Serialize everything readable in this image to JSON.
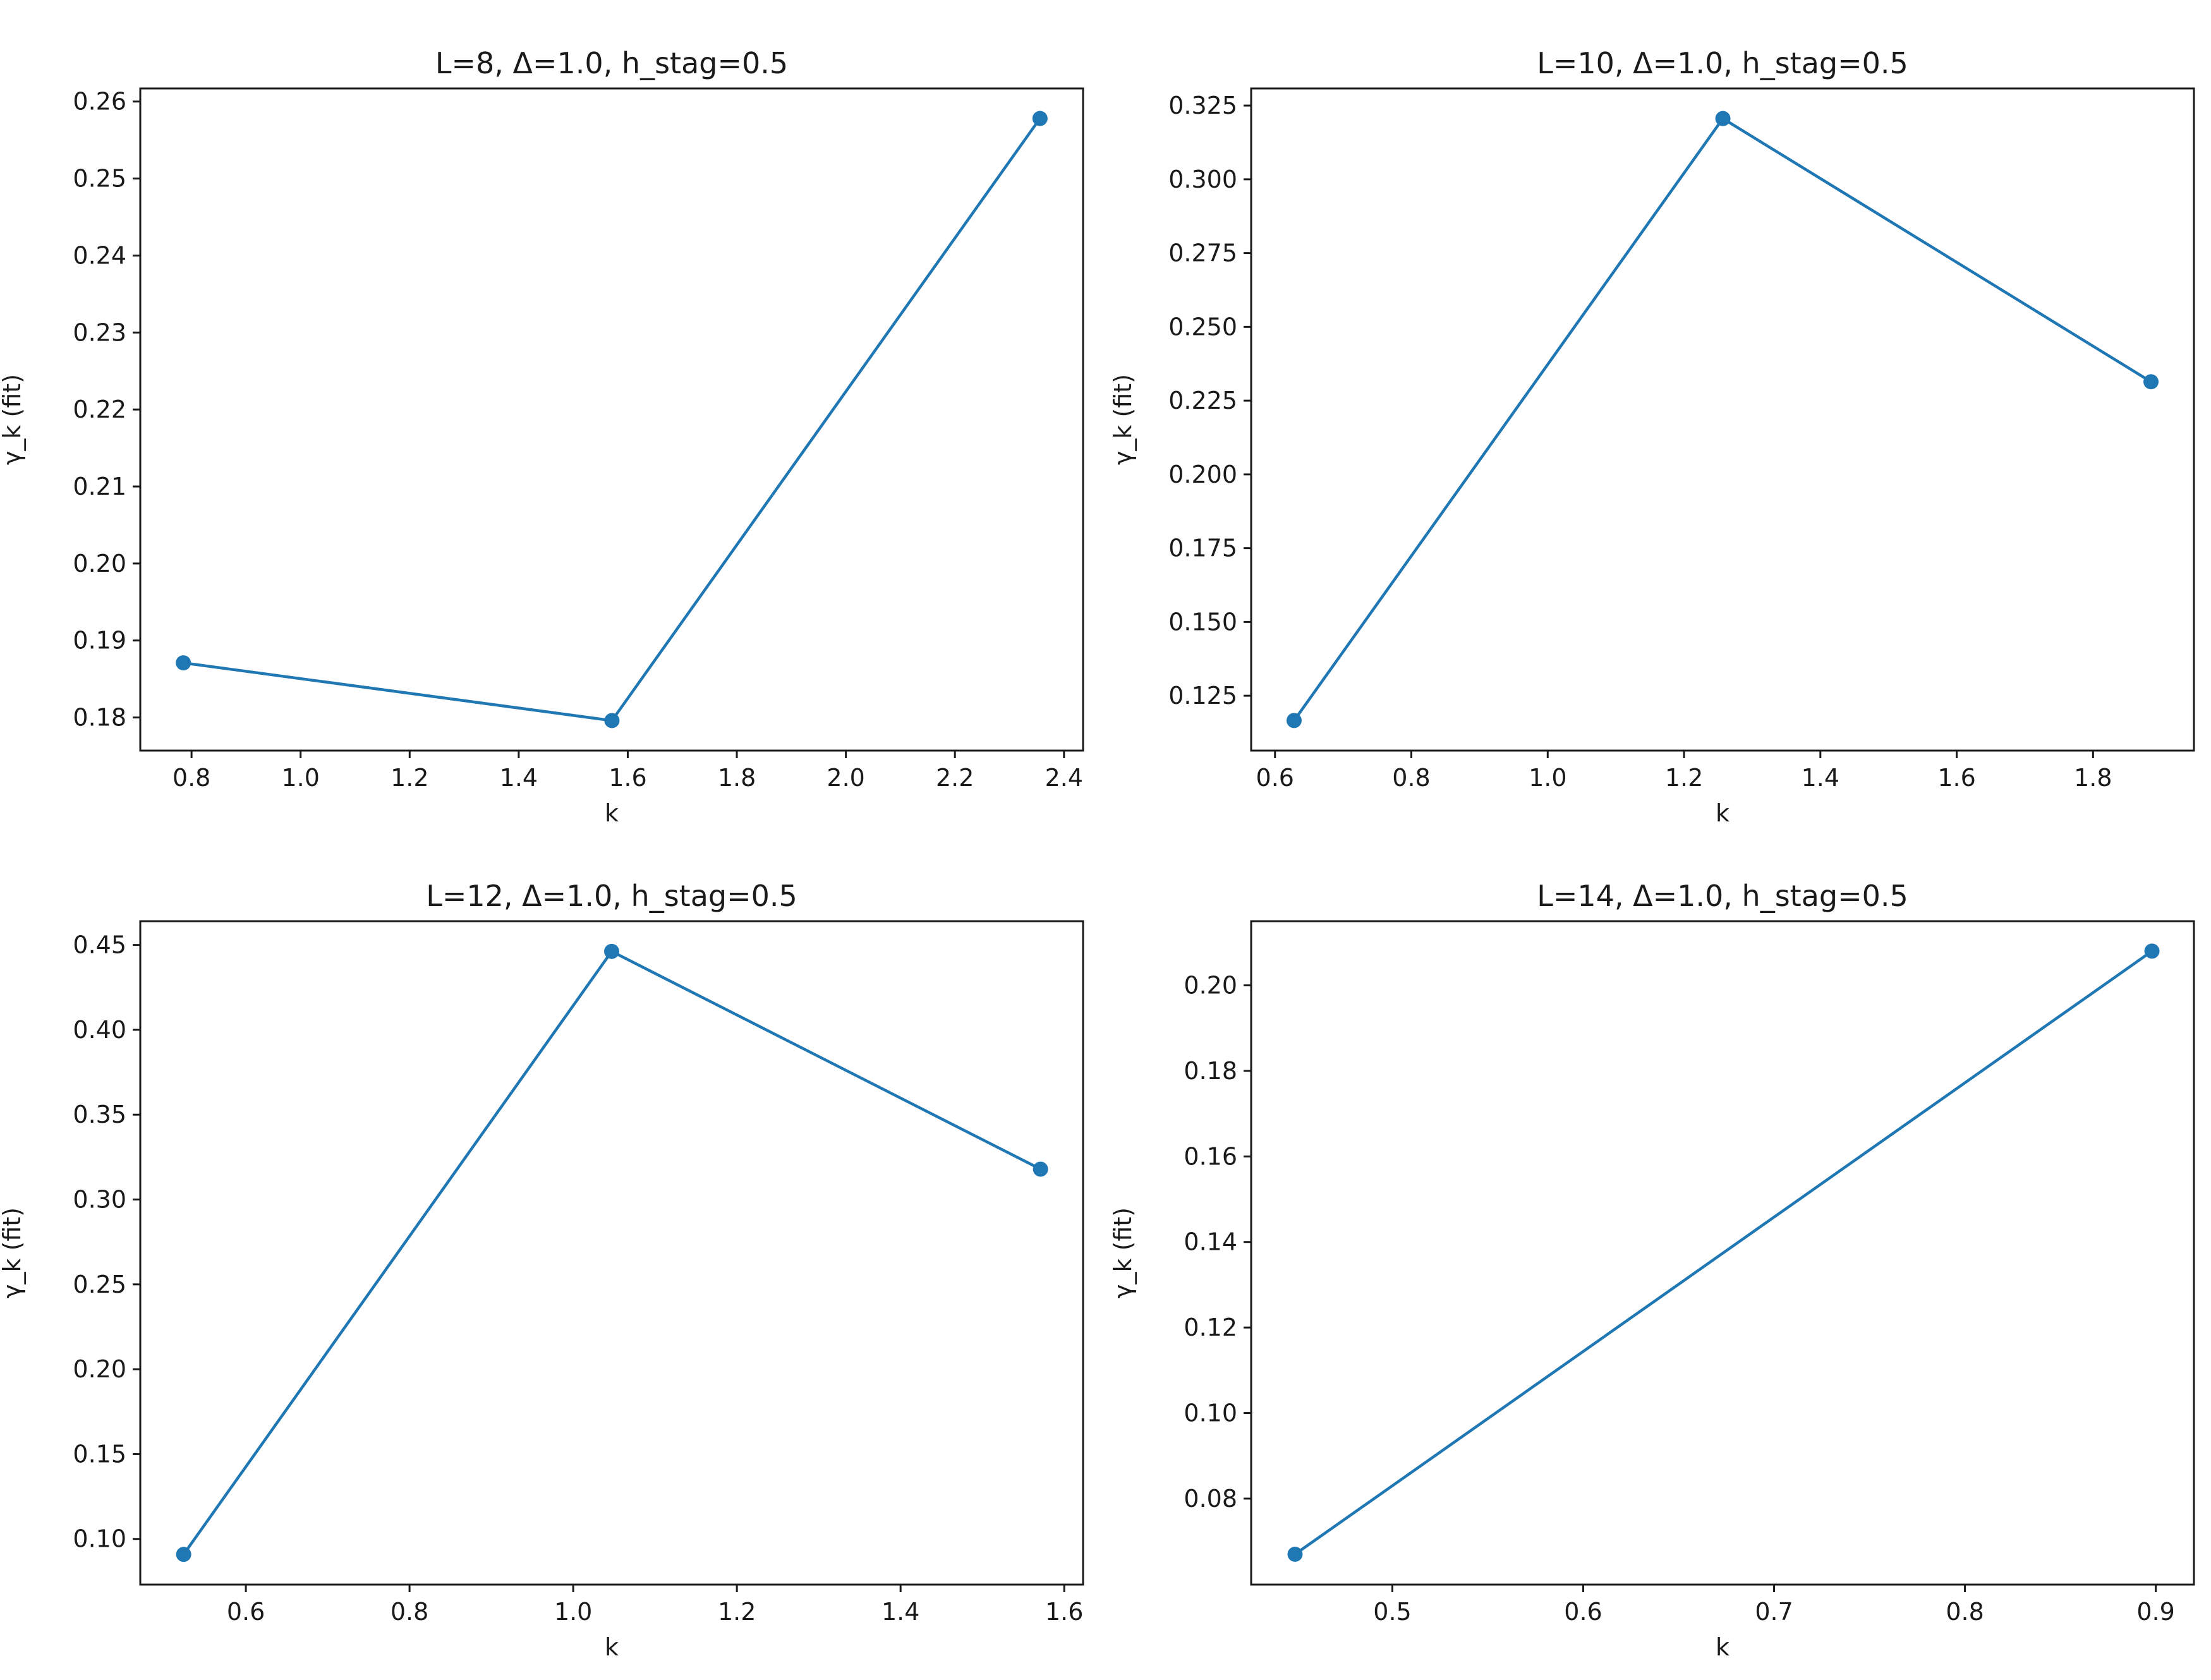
{
  "figure": {
    "line_color": "#1f77b4",
    "background": "#ffffff"
  },
  "chart_data": [
    {
      "type": "line",
      "title": "L=8, Δ=1.0, h_stag=0.5",
      "xlabel": "k",
      "ylabel": "γ_k (fit)",
      "x": [
        0.785,
        1.571,
        2.356
      ],
      "y": [
        0.1871,
        0.1796,
        0.2578
      ],
      "xlim": [
        0.706,
        2.435
      ],
      "ylim": [
        0.1757,
        0.2617
      ],
      "xticks": [
        0.8,
        1.0,
        1.2,
        1.4,
        1.6,
        1.8,
        2.0,
        2.2,
        2.4
      ],
      "xtick_labels": [
        "0.8",
        "1.0",
        "1.2",
        "1.4",
        "1.6",
        "1.8",
        "2.0",
        "2.2",
        "2.4"
      ],
      "yticks": [
        0.18,
        0.19,
        0.2,
        0.21,
        0.22,
        0.23,
        0.24,
        0.25,
        0.26
      ],
      "ytick_labels": [
        "0.18",
        "0.19",
        "0.20",
        "0.21",
        "0.22",
        "0.23",
        "0.24",
        "0.25",
        "0.26"
      ],
      "grid": false,
      "marker": "circle"
    },
    {
      "type": "line",
      "title": "L=10, Δ=1.0, h_stag=0.5",
      "xlabel": "k",
      "ylabel": "γ_k (fit)",
      "x": [
        0.628,
        1.257,
        1.885
      ],
      "y": [
        0.1166,
        0.3206,
        0.2314
      ],
      "xlim": [
        0.565,
        1.948
      ],
      "ylim": [
        0.1064,
        0.3308
      ],
      "xticks": [
        0.6,
        0.8,
        1.0,
        1.2,
        1.4,
        1.6,
        1.8
      ],
      "xtick_labels": [
        "0.6",
        "0.8",
        "1.0",
        "1.2",
        "1.4",
        "1.6",
        "1.8"
      ],
      "yticks": [
        0.125,
        0.15,
        0.175,
        0.2,
        0.225,
        0.25,
        0.275,
        0.3,
        0.325
      ],
      "ytick_labels": [
        "0.125",
        "0.150",
        "0.175",
        "0.200",
        "0.225",
        "0.250",
        "0.275",
        "0.300",
        "0.325"
      ],
      "grid": false,
      "marker": "circle"
    },
    {
      "type": "line",
      "title": "L=12, Δ=1.0, h_stag=0.5",
      "xlabel": "k",
      "ylabel": "γ_k (fit)",
      "x": [
        0.524,
        1.047,
        1.571
      ],
      "y": [
        0.0909,
        0.4462,
        0.3179
      ],
      "xlim": [
        0.471,
        1.623
      ],
      "ylim": [
        0.0731,
        0.464
      ],
      "xticks": [
        0.6,
        0.8,
        1.0,
        1.2,
        1.4,
        1.6
      ],
      "xtick_labels": [
        "0.6",
        "0.8",
        "1.0",
        "1.2",
        "1.4",
        "1.6"
      ],
      "yticks": [
        0.1,
        0.15,
        0.2,
        0.25,
        0.3,
        0.35,
        0.4,
        0.45
      ],
      "ytick_labels": [
        "0.10",
        "0.15",
        "0.20",
        "0.25",
        "0.30",
        "0.35",
        "0.40",
        "0.45"
      ],
      "grid": false,
      "marker": "circle"
    },
    {
      "type": "line",
      "title": "L=14, Δ=1.0, h_stag=0.5",
      "xlabel": "k",
      "ylabel": "γ_k (fit)",
      "x": [
        0.449,
        0.898
      ],
      "y": [
        0.067,
        0.208
      ],
      "xlim": [
        0.426,
        0.92
      ],
      "ylim": [
        0.0599,
        0.215
      ],
      "xticks": [
        0.5,
        0.6,
        0.7,
        0.8,
        0.9
      ],
      "xtick_labels": [
        "0.5",
        "0.6",
        "0.7",
        "0.8",
        "0.9"
      ],
      "yticks": [
        0.08,
        0.1,
        0.12,
        0.14,
        0.16,
        0.18,
        0.2
      ],
      "ytick_labels": [
        "0.08",
        "0.10",
        "0.12",
        "0.14",
        "0.16",
        "0.18",
        "0.20"
      ],
      "grid": false,
      "marker": "circle"
    }
  ]
}
